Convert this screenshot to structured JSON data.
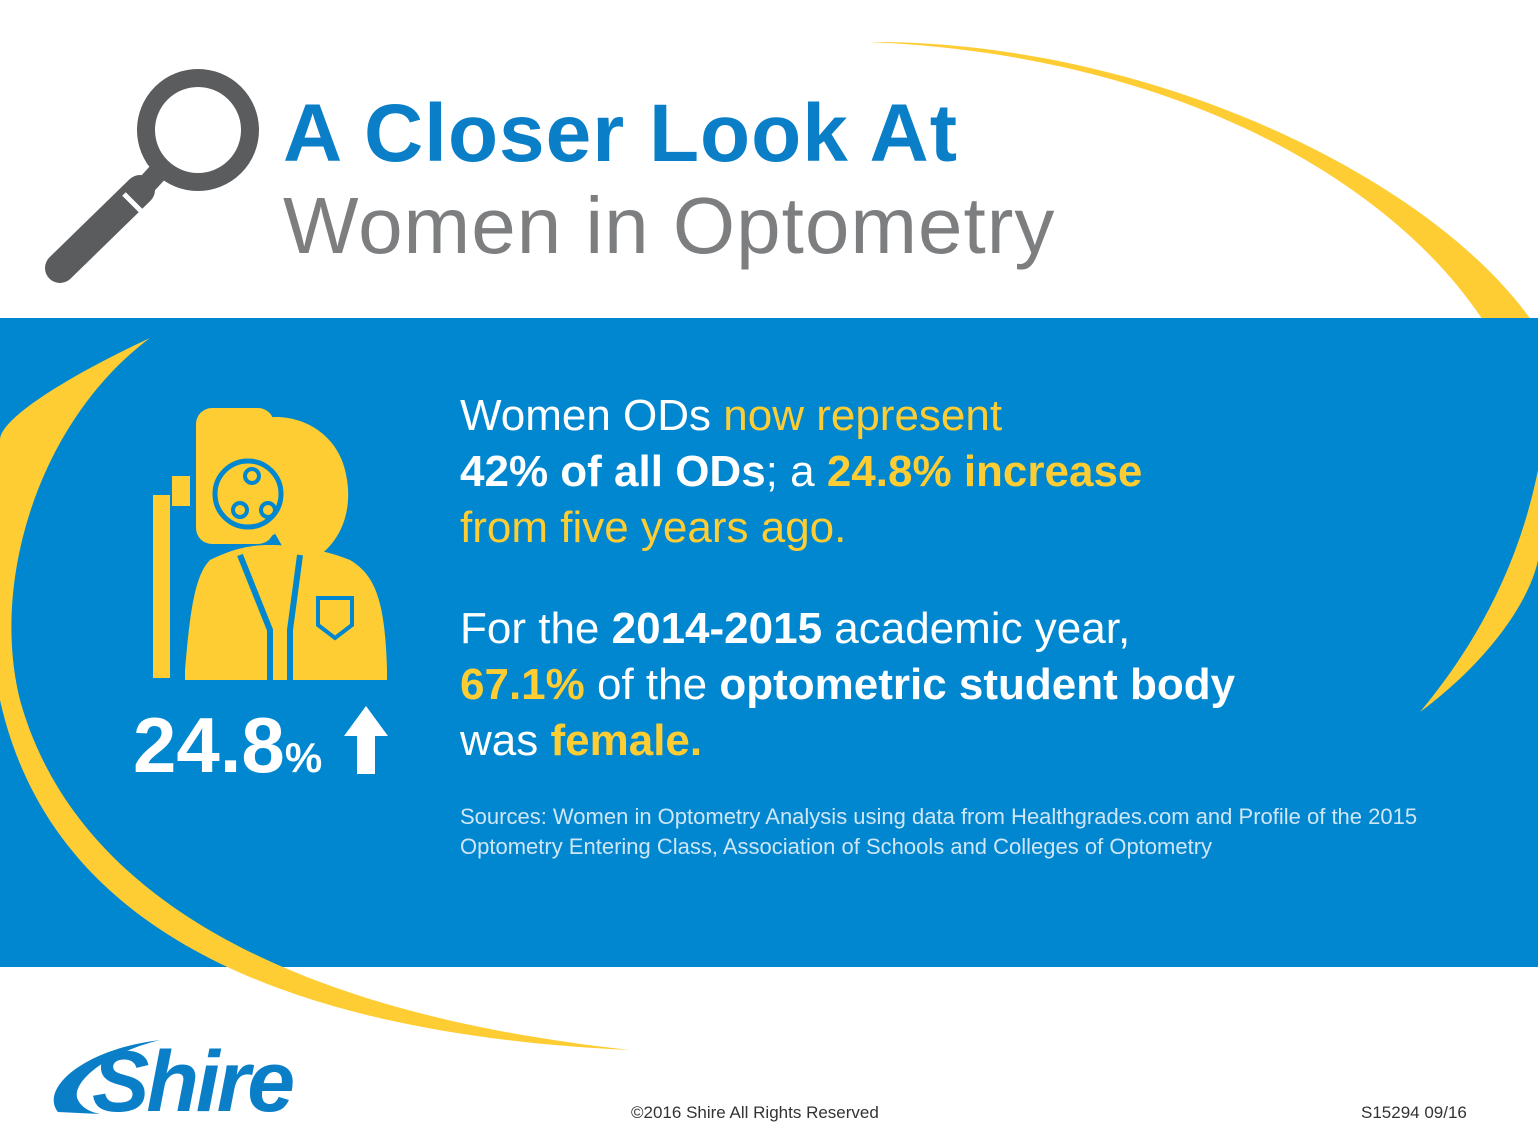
{
  "colors": {
    "blue_band": "#0087cf",
    "title_blue": "#0a7fc7",
    "title_gray": "#7d7e80",
    "accent_yellow": "#fdcd33",
    "white": "#ffffff"
  },
  "icons": [
    "magnifying-glass-icon",
    "optometrist-phoropter-icon",
    "arrow-up-icon"
  ],
  "title": {
    "line1": "A Closer Look At",
    "line2": "Women in Optometry"
  },
  "stat": {
    "number": "24.8",
    "percent_sign": "%"
  },
  "para1": {
    "s1": "Women ODs",
    "s2": " now represent",
    "s3": "42% of all ODs",
    "s4": "; a ",
    "s5": "24.8% increase",
    "s6": "from five years ago."
  },
  "para2": {
    "s1": "For the ",
    "s2": "2014-2015",
    "s3": " academic year,",
    "s4": "67.1%",
    "s5": " of the ",
    "s6": "optometric student body",
    "s7": "was ",
    "s8": "female."
  },
  "sources": "Sources: Women in Optometry Analysis using data from Healthgrades.com and Profile of the 2015 Optometry Entering Class, Association of Schools and Colleges of Optometry",
  "footer": {
    "logo": "Shire",
    "copyright": "©2016 Shire All Rights Reserved",
    "code": "S15294 09/16"
  }
}
